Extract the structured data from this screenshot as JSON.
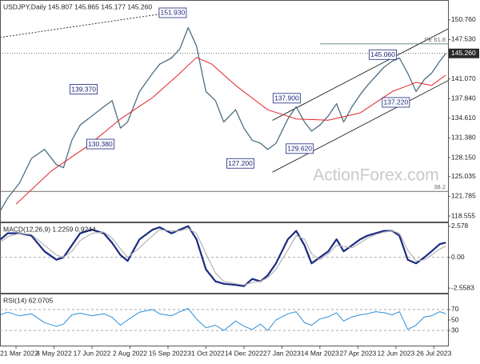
{
  "chart_data": [
    {
      "type": "line",
      "title": "USDJPY,Daily  145.807 145.865 145.177 145.260",
      "watermark": "ActionForex.com",
      "xlim": [
        -13.5,
        363.9
      ],
      "xticks": [
        {
          "value": 0,
          "label": "21 Mar 2022"
        },
        {
          "value": 32,
          "label": "4 May 2022"
        },
        {
          "value": 64,
          "label": "17 Jun 2022"
        },
        {
          "value": 96,
          "label": "2 Aug 2022"
        },
        {
          "value": 128,
          "label": "15 Sep 2022"
        },
        {
          "value": 160,
          "label": "31 Oct 2022"
        },
        {
          "value": 192,
          "label": "14 Dec 2022"
        },
        {
          "value": 224,
          "label": "27 Jan 2023"
        },
        {
          "value": 256,
          "label": "14 Mar 2023"
        },
        {
          "value": 288,
          "label": "27 Apr 2023"
        },
        {
          "value": 320,
          "label": "12 Jun 2023"
        },
        {
          "value": 352,
          "label": "26 Jul 2023"
        }
      ],
      "ylim": [
        117.64,
        153.9
      ],
      "yticks": [
        {
          "value": 150.76,
          "label": "150.760"
        },
        {
          "value": 147.53,
          "label": "147.530"
        },
        {
          "value": 141.07,
          "label": "141.070"
        },
        {
          "value": 137.84,
          "label": "137.840"
        },
        {
          "value": 134.61,
          "label": "134.610"
        },
        {
          "value": 131.38,
          "label": "131.380"
        },
        {
          "value": 128.15,
          "label": "128.150"
        },
        {
          "value": 125.035,
          "label": "125.035"
        },
        {
          "value": 121.785,
          "label": "121.785"
        },
        {
          "value": 118.555,
          "label": "118.555"
        }
      ],
      "current_price": {
        "value": 145.26,
        "label": "145.260"
      },
      "series": [
        {
          "color": "#4d6e82",
          "width": 1.3,
          "x": [
            -13,
            -7,
            3,
            13,
            24,
            34,
            40,
            47,
            54,
            64,
            74,
            81,
            88,
            94,
            104,
            115,
            121,
            131,
            138,
            145,
            152,
            160,
            168,
            175,
            185,
            192,
            199,
            206,
            212,
            219,
            229,
            236,
            243,
            249,
            256,
            263,
            270,
            276,
            283,
            290,
            296,
            303,
            310,
            317,
            323,
            330,
            337,
            344,
            350,
            357,
            362
          ],
          "values": [
            119.5,
            121.5,
            124,
            128,
            129.5,
            127,
            126.5,
            131,
            133.5,
            135,
            136.5,
            137.5,
            133,
            134,
            139,
            142,
            143.5,
            144.5,
            146,
            149.5,
            146.5,
            139,
            137.5,
            134,
            136,
            133,
            131,
            130.5,
            129.5,
            130.5,
            134.5,
            136.5,
            134,
            132.5,
            133.5,
            135,
            137,
            134,
            136.5,
            138.5,
            140,
            141.5,
            143,
            144,
            144.5,
            142,
            139,
            141,
            142,
            144,
            145.26
          ]
        },
        {
          "color": "#e0242a",
          "width": 1,
          "x": [
            0,
            30,
            60,
            88,
            115,
            138,
            152,
            165,
            185,
            212,
            236,
            263,
            290,
            317,
            337,
            350,
            362
          ],
          "values": [
            120.5,
            126,
            130,
            134.5,
            138,
            142,
            144.6,
            143.5,
            140,
            136,
            134.5,
            134.3,
            135.5,
            139,
            140.5,
            140,
            141.7
          ]
        }
      ],
      "lines": [
        {
          "x1": -13.5,
          "y1": 147.88,
          "x2": 143,
          "y2": 152.33,
          "color": "#222222",
          "dash": true
        },
        {
          "x1": 216,
          "y1": 134.27,
          "x2": 364,
          "y2": 149.3,
          "color": "#222222",
          "dash": false
        },
        {
          "x1": 216,
          "y1": 125.76,
          "x2": 364,
          "y2": 140.8,
          "color": "#222222",
          "dash": false
        },
        {
          "x1": 256,
          "y1": 146.83,
          "x2": 364,
          "y2": 146.83,
          "color": "#5f7a78",
          "dash": false,
          "label": "FE 61.8"
        },
        {
          "x1": -13.5,
          "y1": 122.6,
          "x2": 364,
          "y2": 122.6,
          "color": "#707070",
          "dash": false,
          "label": "38.2"
        }
      ],
      "annotations": [
        {
          "x": 132,
          "value": 151.93,
          "label": "151.930"
        },
        {
          "x": 57,
          "value": 139.37,
          "label": "139.370"
        },
        {
          "x": 71,
          "value": 130.38,
          "label": "130.380"
        },
        {
          "x": 189,
          "value": 127.2,
          "label": "127.200"
        },
        {
          "x": 228,
          "value": 137.9,
          "label": "137.900"
        },
        {
          "x": 239,
          "value": 129.62,
          "label": "129.620"
        },
        {
          "x": 309,
          "value": 145.06,
          "label": "145.060"
        },
        {
          "x": 320,
          "value": 137.22,
          "label": "137.220"
        }
      ]
    },
    {
      "type": "line",
      "title": "MACD(12,26,9) 1.2259 0.9244",
      "ylim": [
        -2.95,
        2.84
      ],
      "yticks": [
        2.578,
        {
          "value": 0,
          "label": "0.00"
        },
        -2.5583
      ],
      "dashed_ticks": [
        1
      ],
      "series": [
        {
          "color": "#1a2a80",
          "width": 2.2,
          "x": [
            -13,
            -7,
            3,
            13,
            24,
            34,
            40,
            47,
            54,
            64,
            74,
            81,
            88,
            94,
            104,
            115,
            121,
            131,
            138,
            145,
            152,
            160,
            168,
            175,
            185,
            192,
            199,
            206,
            212,
            219,
            229,
            236,
            243,
            249,
            256,
            263,
            270,
            276,
            283,
            290,
            296,
            303,
            310,
            317,
            323,
            330,
            337,
            344,
            350,
            357,
            362
          ],
          "values": [
            1.5,
            2.0,
            2.0,
            1.8,
            0.5,
            -0.2,
            0.0,
            1.0,
            2.0,
            2.3,
            2.0,
            1.2,
            0.2,
            -0.3,
            1.5,
            2.3,
            2.5,
            2.0,
            2.3,
            2.6,
            1.5,
            -1.0,
            -2.0,
            -2.2,
            -2.3,
            -2.4,
            -1.8,
            -2.0,
            -1.5,
            -0.5,
            1.5,
            2.2,
            1.0,
            -0.5,
            0.0,
            0.5,
            1.5,
            0.5,
            1.0,
            1.5,
            1.8,
            2.0,
            2.2,
            2.2,
            1.8,
            -0.2,
            -0.5,
            0.0,
            0.5,
            1.1,
            1.2259
          ]
        },
        {
          "color": "#b4b4b4",
          "width": 1.2,
          "x": [
            -13,
            -7,
            3,
            13,
            24,
            34,
            40,
            47,
            54,
            64,
            74,
            81,
            88,
            94,
            104,
            115,
            121,
            131,
            138,
            145,
            152,
            160,
            168,
            175,
            185,
            192,
            199,
            206,
            212,
            219,
            229,
            236,
            243,
            249,
            256,
            263,
            270,
            276,
            283,
            290,
            296,
            303,
            310,
            317,
            323,
            330,
            337,
            344,
            350,
            357,
            362
          ],
          "values": [
            1.3,
            1.7,
            2.0,
            1.9,
            1.0,
            0.2,
            0.0,
            0.5,
            1.4,
            2.0,
            2.1,
            1.6,
            0.7,
            0.0,
            0.8,
            1.8,
            2.3,
            2.2,
            2.2,
            2.4,
            2.0,
            0.3,
            -1.3,
            -2.0,
            -2.2,
            -2.3,
            -2.1,
            -2.0,
            -1.7,
            -1.0,
            0.6,
            1.8,
            1.5,
            0.3,
            -0.2,
            0.3,
            1.0,
            0.9,
            0.8,
            1.2,
            1.6,
            1.9,
            2.1,
            2.2,
            2.0,
            0.6,
            -0.3,
            -0.2,
            0.2,
            0.7,
            0.9244
          ]
        }
      ]
    },
    {
      "type": "line",
      "title": "RSI(14) 62.0705",
      "ylim": [
        1,
        99
      ],
      "yticks": [
        70,
        50,
        30
      ],
      "dashed_ticks": [
        0,
        2
      ],
      "series": [
        {
          "color": "#2e8fd8",
          "width": 1,
          "x": [
            -13,
            -7,
            3,
            13,
            24,
            34,
            40,
            47,
            54,
            64,
            74,
            81,
            88,
            94,
            104,
            115,
            121,
            131,
            138,
            145,
            152,
            160,
            168,
            175,
            185,
            192,
            199,
            206,
            212,
            219,
            229,
            236,
            243,
            249,
            256,
            263,
            270,
            276,
            283,
            290,
            296,
            303,
            310,
            317,
            323,
            330,
            337,
            344,
            350,
            357,
            362
          ],
          "values": [
            60,
            65,
            58,
            62,
            45,
            38,
            42,
            60,
            63,
            58,
            62,
            55,
            40,
            50,
            65,
            70,
            62,
            58,
            66,
            72,
            52,
            35,
            40,
            30,
            48,
            38,
            32,
            42,
            30,
            50,
            62,
            66,
            45,
            40,
            52,
            56,
            64,
            48,
            56,
            60,
            62,
            66,
            64,
            60,
            66,
            32,
            40,
            56,
            58,
            66,
            62.0705
          ]
        }
      ]
    }
  ]
}
